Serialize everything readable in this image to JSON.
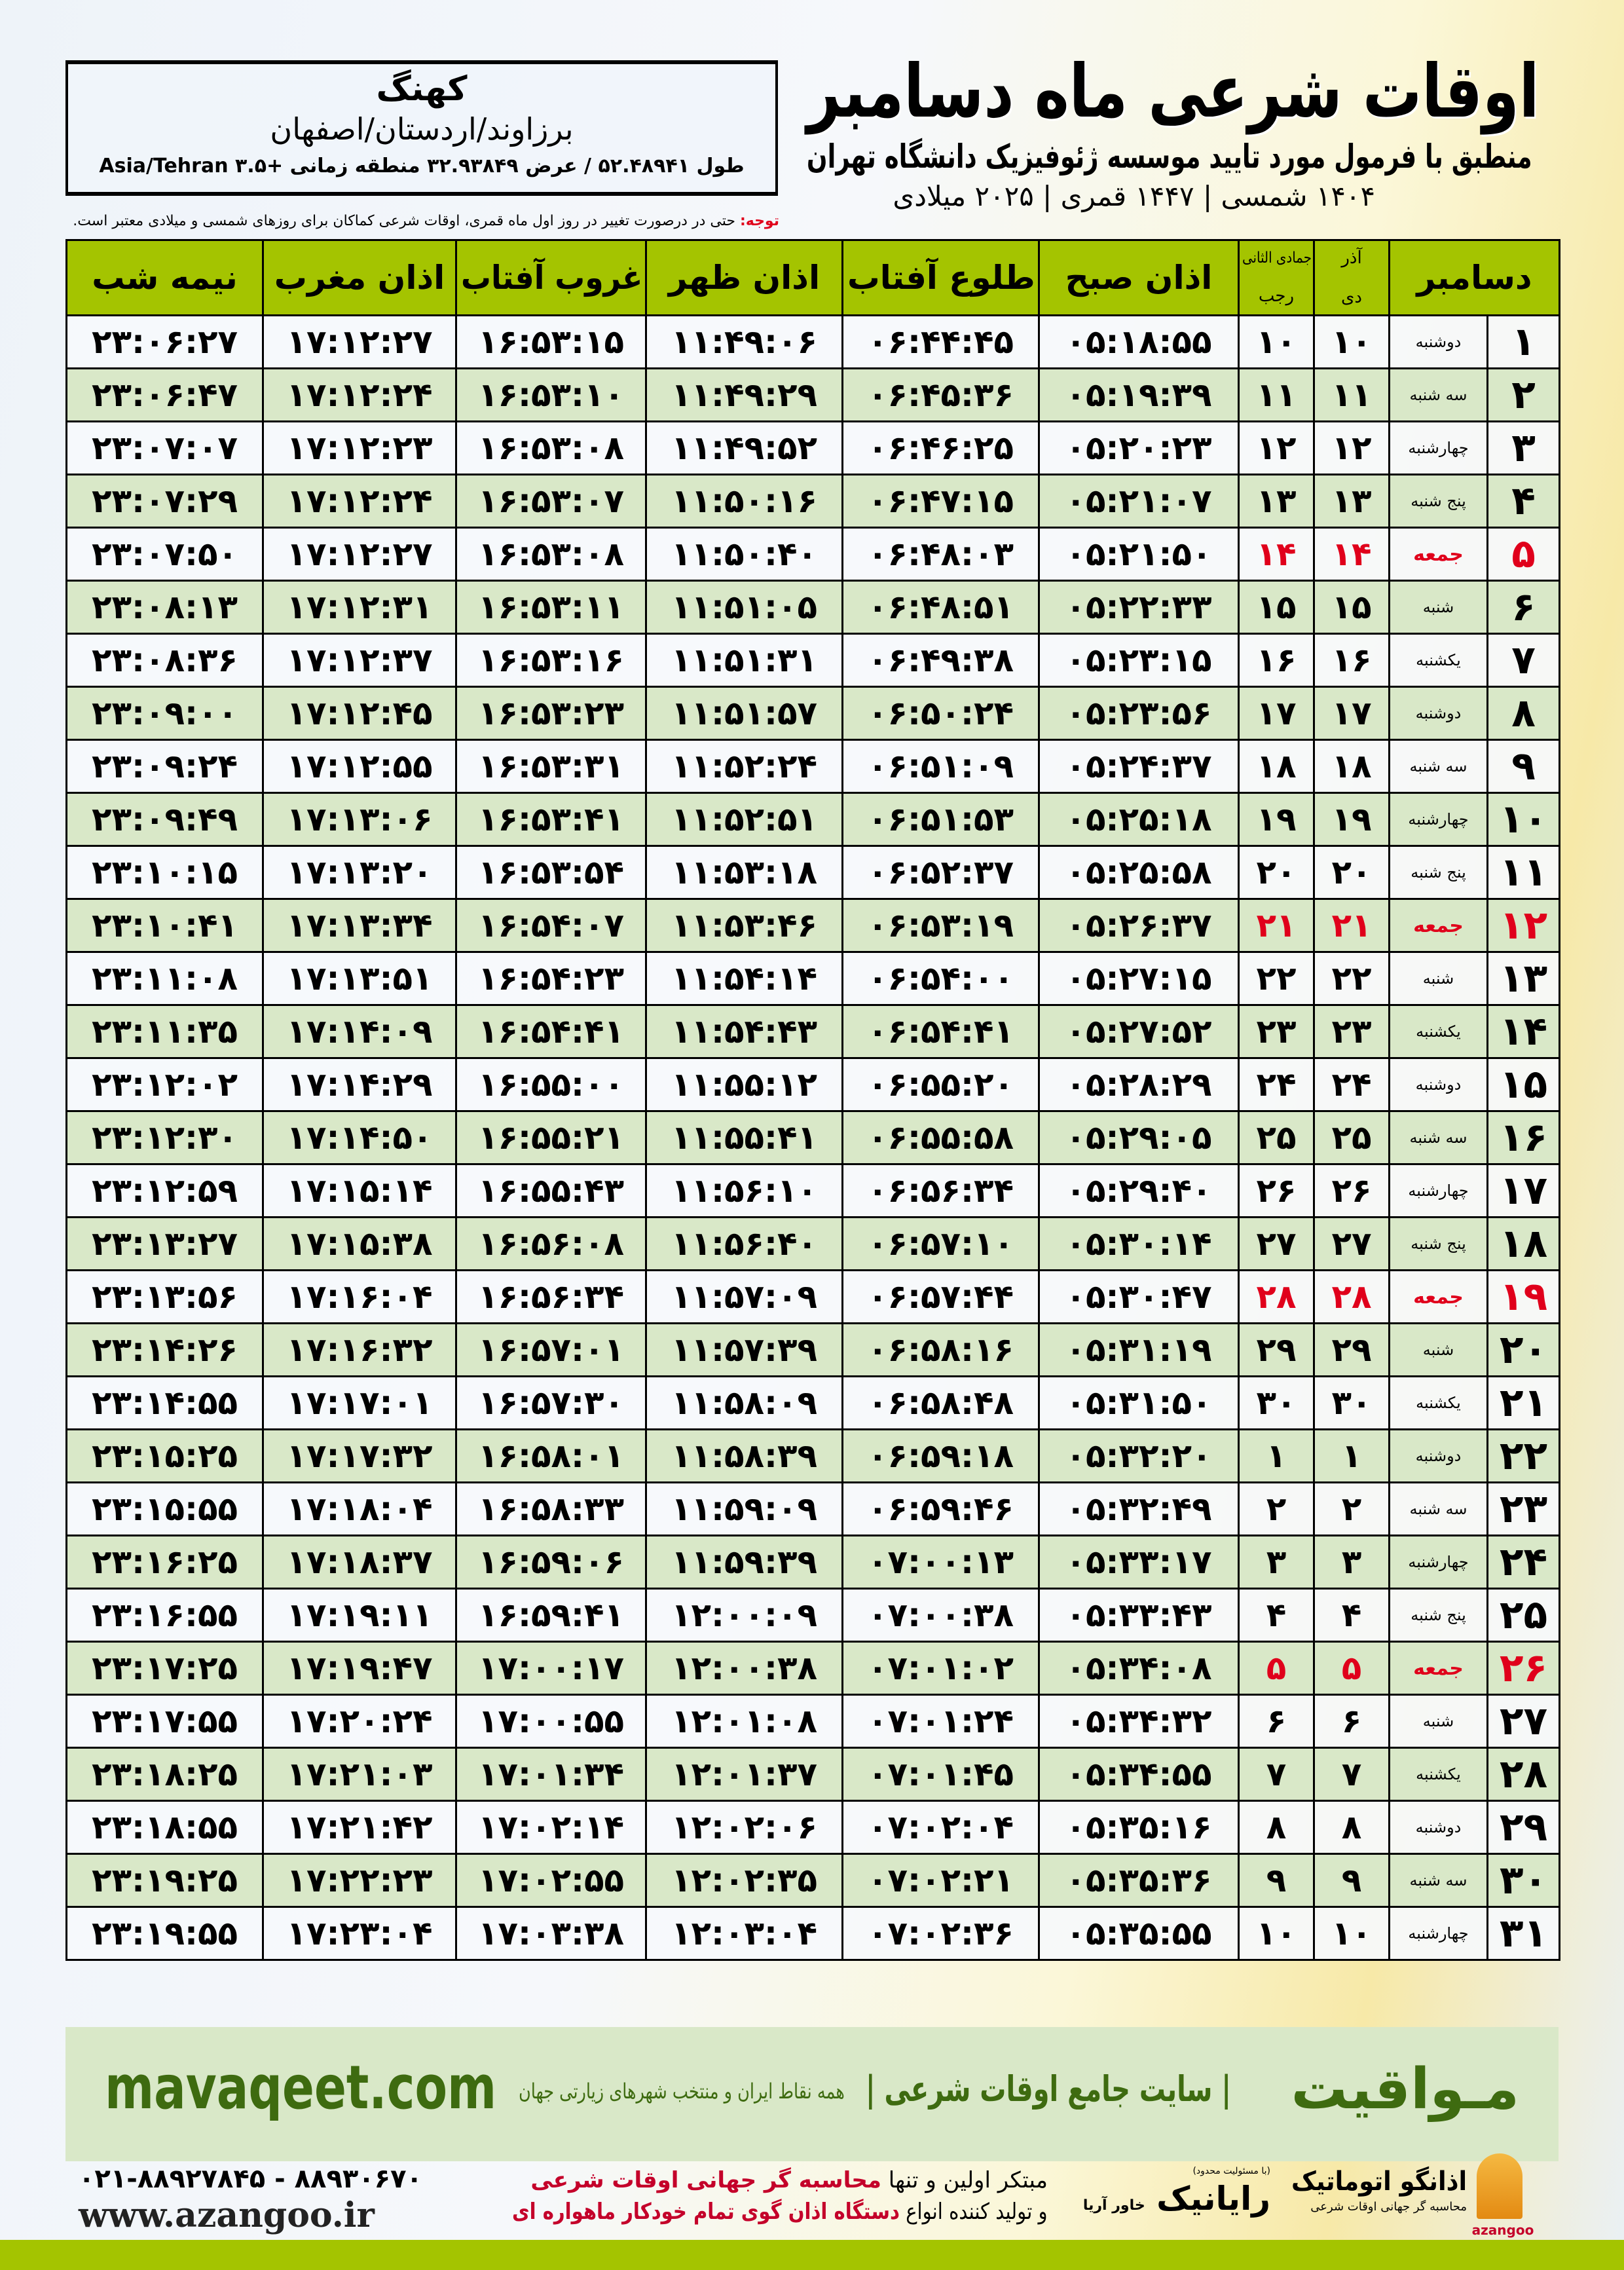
{
  "header": {
    "title": "اوقات شرعی ماه دسامبر",
    "subtitle": "منطبق با فرمول مورد تایید موسسه ژئوفیزیک دانشگاه تهران",
    "dates": "۱۴۰۴ شمسی | ۱۴۴۷ قمری | ۲۰۲۵ میلادی"
  },
  "location": {
    "city": "کهنگ",
    "region": "برزاوند/اردستان/اصفهان",
    "coords": "طول ۵۲.۴۸۹۴۱ / عرض ۳۲.۹۳۸۴۹ منطقه زمانی +۳.۵ Asia/Tehran"
  },
  "note": {
    "label": "توجه:",
    "text": " حتی در درصورت تغییر در روز اول ماه قمری، اوقات شرعی کماکان برای روزهای شمسی و میلادی معتبر است."
  },
  "table": {
    "headers": {
      "month": "دسامبر",
      "solar_top": "آذر",
      "solar_bottom": "دی",
      "lunar_top": "جمادی الثانی",
      "lunar_bottom": "رجب",
      "fajr": "اذان صبح",
      "sunrise": "طلوع آفتاب",
      "dhuhr": "اذان ظهر",
      "sunset": "غروب آفتاب",
      "maghrib": "اذان مغرب",
      "midnight": "نیمه شب"
    },
    "rows": [
      {
        "day": "۱",
        "weekday": "دوشنبه",
        "solar": "۱۰",
        "lunar": "۱۰",
        "fajr": "۰۵:۱۸:۵۵",
        "sunrise": "۰۶:۴۴:۴۵",
        "dhuhr": "۱۱:۴۹:۰۶",
        "sunset": "۱۶:۵۳:۱۵",
        "maghrib": "۱۷:۱۲:۲۷",
        "midnight": "۲۳:۰۶:۲۷"
      },
      {
        "day": "۲",
        "weekday": "سه شنبه",
        "solar": "۱۱",
        "lunar": "۱۱",
        "fajr": "۰۵:۱۹:۳۹",
        "sunrise": "۰۶:۴۵:۳۶",
        "dhuhr": "۱۱:۴۹:۲۹",
        "sunset": "۱۶:۵۳:۱۰",
        "maghrib": "۱۷:۱۲:۲۴",
        "midnight": "۲۳:۰۶:۴۷"
      },
      {
        "day": "۳",
        "weekday": "چهارشنبه",
        "solar": "۱۲",
        "lunar": "۱۲",
        "fajr": "۰۵:۲۰:۲۳",
        "sunrise": "۰۶:۴۶:۲۵",
        "dhuhr": "۱۱:۴۹:۵۲",
        "sunset": "۱۶:۵۳:۰۸",
        "maghrib": "۱۷:۱۲:۲۳",
        "midnight": "۲۳:۰۷:۰۷"
      },
      {
        "day": "۴",
        "weekday": "پنج شنبه",
        "solar": "۱۳",
        "lunar": "۱۳",
        "fajr": "۰۵:۲۱:۰۷",
        "sunrise": "۰۶:۴۷:۱۵",
        "dhuhr": "۱۱:۵۰:۱۶",
        "sunset": "۱۶:۵۳:۰۷",
        "maghrib": "۱۷:۱۲:۲۴",
        "midnight": "۲۳:۰۷:۲۹"
      },
      {
        "day": "۵",
        "weekday": "جمعه",
        "solar": "۱۴",
        "lunar": "۱۴",
        "fajr": "۰۵:۲۱:۵۰",
        "sunrise": "۰۶:۴۸:۰۳",
        "dhuhr": "۱۱:۵۰:۴۰",
        "sunset": "۱۶:۵۳:۰۸",
        "maghrib": "۱۷:۱۲:۲۷",
        "midnight": "۲۳:۰۷:۵۰",
        "friday": true
      },
      {
        "day": "۶",
        "weekday": "شنبه",
        "solar": "۱۵",
        "lunar": "۱۵",
        "fajr": "۰۵:۲۲:۳۳",
        "sunrise": "۰۶:۴۸:۵۱",
        "dhuhr": "۱۱:۵۱:۰۵",
        "sunset": "۱۶:۵۳:۱۱",
        "maghrib": "۱۷:۱۲:۳۱",
        "midnight": "۲۳:۰۸:۱۳"
      },
      {
        "day": "۷",
        "weekday": "یکشنبه",
        "solar": "۱۶",
        "lunar": "۱۶",
        "fajr": "۰۵:۲۳:۱۵",
        "sunrise": "۰۶:۴۹:۳۸",
        "dhuhr": "۱۱:۵۱:۳۱",
        "sunset": "۱۶:۵۳:۱۶",
        "maghrib": "۱۷:۱۲:۳۷",
        "midnight": "۲۳:۰۸:۳۶"
      },
      {
        "day": "۸",
        "weekday": "دوشنبه",
        "solar": "۱۷",
        "lunar": "۱۷",
        "fajr": "۰۵:۲۳:۵۶",
        "sunrise": "۰۶:۵۰:۲۴",
        "dhuhr": "۱۱:۵۱:۵۷",
        "sunset": "۱۶:۵۳:۲۳",
        "maghrib": "۱۷:۱۲:۴۵",
        "midnight": "۲۳:۰۹:۰۰"
      },
      {
        "day": "۹",
        "weekday": "سه شنبه",
        "solar": "۱۸",
        "lunar": "۱۸",
        "fajr": "۰۵:۲۴:۳۷",
        "sunrise": "۰۶:۵۱:۰۹",
        "dhuhr": "۱۱:۵۲:۲۴",
        "sunset": "۱۶:۵۳:۳۱",
        "maghrib": "۱۷:۱۲:۵۵",
        "midnight": "۲۳:۰۹:۲۴"
      },
      {
        "day": "۱۰",
        "weekday": "چهارشنبه",
        "solar": "۱۹",
        "lunar": "۱۹",
        "fajr": "۰۵:۲۵:۱۸",
        "sunrise": "۰۶:۵۱:۵۳",
        "dhuhr": "۱۱:۵۲:۵۱",
        "sunset": "۱۶:۵۳:۴۱",
        "maghrib": "۱۷:۱۳:۰۶",
        "midnight": "۲۳:۰۹:۴۹"
      },
      {
        "day": "۱۱",
        "weekday": "پنج شنبه",
        "solar": "۲۰",
        "lunar": "۲۰",
        "fajr": "۰۵:۲۵:۵۸",
        "sunrise": "۰۶:۵۲:۳۷",
        "dhuhr": "۱۱:۵۳:۱۸",
        "sunset": "۱۶:۵۳:۵۴",
        "maghrib": "۱۷:۱۳:۲۰",
        "midnight": "۲۳:۱۰:۱۵"
      },
      {
        "day": "۱۲",
        "weekday": "جمعه",
        "solar": "۲۱",
        "lunar": "۲۱",
        "fajr": "۰۵:۲۶:۳۷",
        "sunrise": "۰۶:۵۳:۱۹",
        "dhuhr": "۱۱:۵۳:۴۶",
        "sunset": "۱۶:۵۴:۰۷",
        "maghrib": "۱۷:۱۳:۳۴",
        "midnight": "۲۳:۱۰:۴۱",
        "friday": true
      },
      {
        "day": "۱۳",
        "weekday": "شنبه",
        "solar": "۲۲",
        "lunar": "۲۲",
        "fajr": "۰۵:۲۷:۱۵",
        "sunrise": "۰۶:۵۴:۰۰",
        "dhuhr": "۱۱:۵۴:۱۴",
        "sunset": "۱۶:۵۴:۲۳",
        "maghrib": "۱۷:۱۳:۵۱",
        "midnight": "۲۳:۱۱:۰۸"
      },
      {
        "day": "۱۴",
        "weekday": "یکشنبه",
        "solar": "۲۳",
        "lunar": "۲۳",
        "fajr": "۰۵:۲۷:۵۲",
        "sunrise": "۰۶:۵۴:۴۱",
        "dhuhr": "۱۱:۵۴:۴۳",
        "sunset": "۱۶:۵۴:۴۱",
        "maghrib": "۱۷:۱۴:۰۹",
        "midnight": "۲۳:۱۱:۳۵"
      },
      {
        "day": "۱۵",
        "weekday": "دوشنبه",
        "solar": "۲۴",
        "lunar": "۲۴",
        "fajr": "۰۵:۲۸:۲۹",
        "sunrise": "۰۶:۵۵:۲۰",
        "dhuhr": "۱۱:۵۵:۱۲",
        "sunset": "۱۶:۵۵:۰۰",
        "maghrib": "۱۷:۱۴:۲۹",
        "midnight": "۲۳:۱۲:۰۲"
      },
      {
        "day": "۱۶",
        "weekday": "سه شنبه",
        "solar": "۲۵",
        "lunar": "۲۵",
        "fajr": "۰۵:۲۹:۰۵",
        "sunrise": "۰۶:۵۵:۵۸",
        "dhuhr": "۱۱:۵۵:۴۱",
        "sunset": "۱۶:۵۵:۲۱",
        "maghrib": "۱۷:۱۴:۵۰",
        "midnight": "۲۳:۱۲:۳۰"
      },
      {
        "day": "۱۷",
        "weekday": "چهارشنبه",
        "solar": "۲۶",
        "lunar": "۲۶",
        "fajr": "۰۵:۲۹:۴۰",
        "sunrise": "۰۶:۵۶:۳۴",
        "dhuhr": "۱۱:۵۶:۱۰",
        "sunset": "۱۶:۵۵:۴۳",
        "maghrib": "۱۷:۱۵:۱۴",
        "midnight": "۲۳:۱۲:۵۹"
      },
      {
        "day": "۱۸",
        "weekday": "پنج شنبه",
        "solar": "۲۷",
        "lunar": "۲۷",
        "fajr": "۰۵:۳۰:۱۴",
        "sunrise": "۰۶:۵۷:۱۰",
        "dhuhr": "۱۱:۵۶:۴۰",
        "sunset": "۱۶:۵۶:۰۸",
        "maghrib": "۱۷:۱۵:۳۸",
        "midnight": "۲۳:۱۳:۲۷"
      },
      {
        "day": "۱۹",
        "weekday": "جمعه",
        "solar": "۲۸",
        "lunar": "۲۸",
        "fajr": "۰۵:۳۰:۴۷",
        "sunrise": "۰۶:۵۷:۴۴",
        "dhuhr": "۱۱:۵۷:۰۹",
        "sunset": "۱۶:۵۶:۳۴",
        "maghrib": "۱۷:۱۶:۰۴",
        "midnight": "۲۳:۱۳:۵۶",
        "friday": true
      },
      {
        "day": "۲۰",
        "weekday": "شنبه",
        "solar": "۲۹",
        "lunar": "۲۹",
        "fajr": "۰۵:۳۱:۱۹",
        "sunrise": "۰۶:۵۸:۱۶",
        "dhuhr": "۱۱:۵۷:۳۹",
        "sunset": "۱۶:۵۷:۰۱",
        "maghrib": "۱۷:۱۶:۳۲",
        "midnight": "۲۳:۱۴:۲۶"
      },
      {
        "day": "۲۱",
        "weekday": "یکشنبه",
        "solar": "۳۰",
        "lunar": "۳۰",
        "fajr": "۰۵:۳۱:۵۰",
        "sunrise": "۰۶:۵۸:۴۸",
        "dhuhr": "۱۱:۵۸:۰۹",
        "sunset": "۱۶:۵۷:۳۰",
        "maghrib": "۱۷:۱۷:۰۱",
        "midnight": "۲۳:۱۴:۵۵"
      },
      {
        "day": "۲۲",
        "weekday": "دوشنبه",
        "solar": "۱",
        "lunar": "۱",
        "fajr": "۰۵:۳۲:۲۰",
        "sunrise": "۰۶:۵۹:۱۸",
        "dhuhr": "۱۱:۵۸:۳۹",
        "sunset": "۱۶:۵۸:۰۱",
        "maghrib": "۱۷:۱۷:۳۲",
        "midnight": "۲۳:۱۵:۲۵"
      },
      {
        "day": "۲۳",
        "weekday": "سه شنبه",
        "solar": "۲",
        "lunar": "۲",
        "fajr": "۰۵:۳۲:۴۹",
        "sunrise": "۰۶:۵۹:۴۶",
        "dhuhr": "۱۱:۵۹:۰۹",
        "sunset": "۱۶:۵۸:۳۳",
        "maghrib": "۱۷:۱۸:۰۴",
        "midnight": "۲۳:۱۵:۵۵"
      },
      {
        "day": "۲۴",
        "weekday": "چهارشنبه",
        "solar": "۳",
        "lunar": "۳",
        "fajr": "۰۵:۳۳:۱۷",
        "sunrise": "۰۷:۰۰:۱۳",
        "dhuhr": "۱۱:۵۹:۳۹",
        "sunset": "۱۶:۵۹:۰۶",
        "maghrib": "۱۷:۱۸:۳۷",
        "midnight": "۲۳:۱۶:۲۵"
      },
      {
        "day": "۲۵",
        "weekday": "پنج شنبه",
        "solar": "۴",
        "lunar": "۴",
        "fajr": "۰۵:۳۳:۴۳",
        "sunrise": "۰۷:۰۰:۳۸",
        "dhuhr": "۱۲:۰۰:۰۹",
        "sunset": "۱۶:۵۹:۴۱",
        "maghrib": "۱۷:۱۹:۱۱",
        "midnight": "۲۳:۱۶:۵۵"
      },
      {
        "day": "۲۶",
        "weekday": "جمعه",
        "solar": "۵",
        "lunar": "۵",
        "fajr": "۰۵:۳۴:۰۸",
        "sunrise": "۰۷:۰۱:۰۲",
        "dhuhr": "۱۲:۰۰:۳۸",
        "sunset": "۱۷:۰۰:۱۷",
        "maghrib": "۱۷:۱۹:۴۷",
        "midnight": "۲۳:۱۷:۲۵",
        "friday": true
      },
      {
        "day": "۲۷",
        "weekday": "شنبه",
        "solar": "۶",
        "lunar": "۶",
        "fajr": "۰۵:۳۴:۳۲",
        "sunrise": "۰۷:۰۱:۲۴",
        "dhuhr": "۱۲:۰۱:۰۸",
        "sunset": "۱۷:۰۰:۵۵",
        "maghrib": "۱۷:۲۰:۲۴",
        "midnight": "۲۳:۱۷:۵۵"
      },
      {
        "day": "۲۸",
        "weekday": "یکشنبه",
        "solar": "۷",
        "lunar": "۷",
        "fajr": "۰۵:۳۴:۵۵",
        "sunrise": "۰۷:۰۱:۴۵",
        "dhuhr": "۱۲:۰۱:۳۷",
        "sunset": "۱۷:۰۱:۳۴",
        "maghrib": "۱۷:۲۱:۰۳",
        "midnight": "۲۳:۱۸:۲۵"
      },
      {
        "day": "۲۹",
        "weekday": "دوشنبه",
        "solar": "۸",
        "lunar": "۸",
        "fajr": "۰۵:۳۵:۱۶",
        "sunrise": "۰۷:۰۲:۰۴",
        "dhuhr": "۱۲:۰۲:۰۶",
        "sunset": "۱۷:۰۲:۱۴",
        "maghrib": "۱۷:۲۱:۴۲",
        "midnight": "۲۳:۱۸:۵۵"
      },
      {
        "day": "۳۰",
        "weekday": "سه شنبه",
        "solar": "۹",
        "lunar": "۹",
        "fajr": "۰۵:۳۵:۳۶",
        "sunrise": "۰۷:۰۲:۲۱",
        "dhuhr": "۱۲:۰۲:۳۵",
        "sunset": "۱۷:۰۲:۵۵",
        "maghrib": "۱۷:۲۲:۲۳",
        "midnight": "۲۳:۱۹:۲۵"
      },
      {
        "day": "۳۱",
        "weekday": "چهارشنبه",
        "solar": "۱۰",
        "lunar": "۱۰",
        "fajr": "۰۵:۳۵:۵۵",
        "sunrise": "۰۷:۰۲:۳۶",
        "dhuhr": "۱۲:۰۳:۰۴",
        "sunset": "۱۷:۰۳:۳۸",
        "maghrib": "۱۷:۲۳:۰۴",
        "midnight": "۲۳:۱۹:۵۵"
      }
    ]
  },
  "banner": {
    "brand": "مـواقیت",
    "subtitle": "| سایت جامع اوقات شرعی |",
    "tagline": "همه نقاط ایران و منتخب شهرهای زیارتی جهان",
    "site": "mavaqeet.com"
  },
  "footer": {
    "phone": "۰۲۱-۸۸۹۲۷۸۴۵ - ۸۸۹۳۰۶۷۰",
    "web": "www.azangoo.ir",
    "line1_a": "مبتکر اولین و تنها ",
    "line1_b": "محاسبه گر جهانی اوقات شرعی",
    "line2_a": "و تولید کننده انواع ",
    "line2_b": "دستگاه اذان گوی تمام خودکار ماهواره ای",
    "rayanik_small": "(با مسئولیت محدود)",
    "rayanik": "رایانیک",
    "rayanik_sub": "خاور آریا",
    "azangoo_name": "اذانگو اتوماتیک",
    "azangoo_tag": "محاسبه گر جهانی اوقات شرعی",
    "azangoo_en": "azangoo"
  },
  "colors": {
    "header_green": "#a4c400",
    "row_alt": "#d9e8c8",
    "friday_red": "#e0001b",
    "brand_green": "#3e6b10"
  }
}
